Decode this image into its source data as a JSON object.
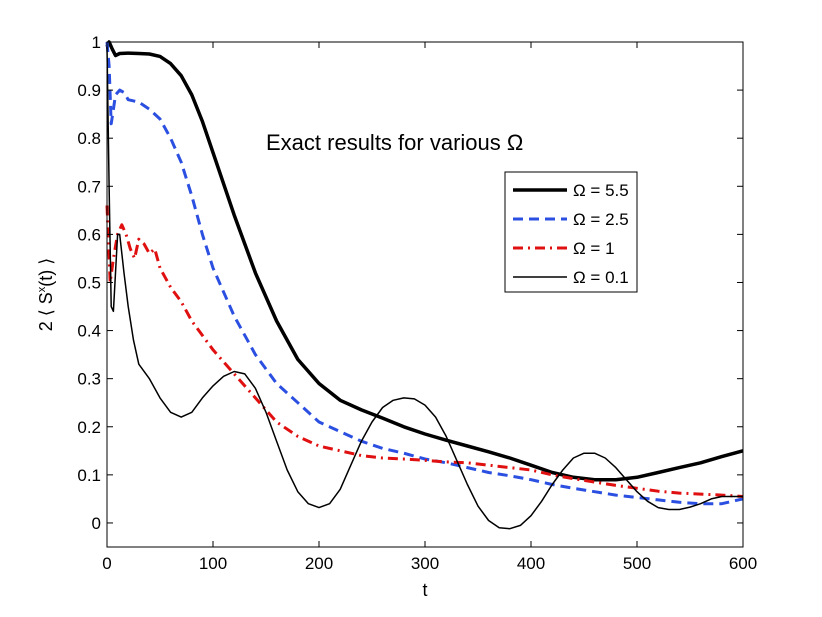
{
  "chart_data": {
    "type": "line",
    "title": "",
    "annotation": "Exact results for various Ω",
    "xlabel": "t",
    "ylabel": "2 ⟨ Sx(t) ⟩",
    "ylabel_parts": {
      "prefix": "2 ⟨ S",
      "sup": "x",
      "suffix": "(t) ⟩"
    },
    "xlim": [
      0,
      600
    ],
    "ylim": [
      -0.05,
      1.0
    ],
    "xticks": [
      0,
      100,
      200,
      300,
      400,
      500,
      600
    ],
    "yticks": [
      0,
      0.1,
      0.2,
      0.3,
      0.4,
      0.5,
      0.6,
      0.7,
      0.8,
      0.9,
      1
    ],
    "xtick_labels": [
      "0",
      "100",
      "200",
      "300",
      "400",
      "500",
      "600"
    ],
    "ytick_labels": [
      "0",
      "0.1",
      "0.2",
      "0.3",
      "0.4",
      "0.5",
      "0.6",
      "0.7",
      "0.8",
      "0.9",
      "1"
    ],
    "grid": false,
    "legend_position": "upper-right",
    "series": [
      {
        "name": "Ω = 5.5",
        "color": "#000000",
        "style": "solid-thick",
        "x": [
          0,
          2,
          5,
          8,
          12,
          20,
          30,
          40,
          50,
          60,
          70,
          80,
          90,
          100,
          120,
          140,
          160,
          180,
          200,
          220,
          240,
          260,
          280,
          300,
          320,
          340,
          360,
          380,
          400,
          420,
          440,
          460,
          480,
          500,
          520,
          540,
          560,
          580,
          600
        ],
        "y": [
          0.99,
          1.0,
          0.985,
          0.972,
          0.976,
          0.977,
          0.976,
          0.975,
          0.97,
          0.955,
          0.93,
          0.89,
          0.835,
          0.77,
          0.64,
          0.52,
          0.42,
          0.34,
          0.29,
          0.255,
          0.235,
          0.218,
          0.2,
          0.185,
          0.172,
          0.16,
          0.148,
          0.135,
          0.12,
          0.105,
          0.095,
          0.09,
          0.09,
          0.095,
          0.105,
          0.115,
          0.125,
          0.138,
          0.15
        ]
      },
      {
        "name": "Ω = 2.5",
        "color": "#2b4fe0",
        "style": "dashed",
        "x": [
          0,
          2,
          4,
          6,
          8,
          12,
          16,
          20,
          30,
          40,
          50,
          60,
          70,
          80,
          90,
          100,
          120,
          140,
          160,
          180,
          200,
          220,
          240,
          260,
          280,
          300,
          320,
          340,
          360,
          380,
          400,
          420,
          440,
          460,
          480,
          500,
          520,
          540,
          560,
          580,
          600
        ],
        "y": [
          1.0,
          0.95,
          0.83,
          0.86,
          0.89,
          0.9,
          0.895,
          0.88,
          0.875,
          0.86,
          0.84,
          0.8,
          0.75,
          0.68,
          0.6,
          0.53,
          0.43,
          0.35,
          0.29,
          0.25,
          0.21,
          0.19,
          0.17,
          0.155,
          0.145,
          0.133,
          0.125,
          0.115,
          0.105,
          0.098,
          0.09,
          0.08,
          0.072,
          0.065,
          0.058,
          0.053,
          0.048,
          0.043,
          0.04,
          0.04,
          0.05
        ]
      },
      {
        "name": "Ω = 1",
        "color": "#e01010",
        "style": "dashdot",
        "x": [
          0,
          3,
          6,
          10,
          14,
          18,
          22,
          26,
          30,
          35,
          40,
          45,
          50,
          60,
          70,
          80,
          90,
          100,
          120,
          140,
          160,
          180,
          200,
          220,
          240,
          260,
          280,
          300,
          320,
          340,
          360,
          380,
          400,
          420,
          440,
          460,
          480,
          500,
          520,
          540,
          560,
          580,
          600
        ],
        "y": [
          0.66,
          0.5,
          0.55,
          0.6,
          0.62,
          0.6,
          0.57,
          0.55,
          0.59,
          0.58,
          0.56,
          0.57,
          0.53,
          0.49,
          0.46,
          0.42,
          0.39,
          0.36,
          0.31,
          0.26,
          0.21,
          0.18,
          0.16,
          0.15,
          0.14,
          0.135,
          0.133,
          0.13,
          0.127,
          0.125,
          0.12,
          0.115,
          0.11,
          0.1,
          0.092,
          0.085,
          0.078,
          0.072,
          0.066,
          0.062,
          0.06,
          0.058,
          0.055
        ]
      },
      {
        "name": "Ω = 0.1",
        "color": "#000000",
        "style": "solid-thin",
        "x": [
          0,
          2,
          4,
          6,
          8,
          10,
          12,
          16,
          20,
          25,
          30,
          40,
          50,
          60,
          70,
          80,
          90,
          100,
          110,
          120,
          130,
          140,
          150,
          160,
          170,
          180,
          190,
          200,
          210,
          220,
          230,
          240,
          250,
          260,
          270,
          280,
          290,
          300,
          310,
          320,
          330,
          340,
          350,
          360,
          370,
          380,
          390,
          400,
          410,
          420,
          430,
          440,
          450,
          460,
          470,
          480,
          490,
          500,
          510,
          520,
          530,
          540,
          550,
          560,
          570,
          580,
          590,
          600
        ],
        "y": [
          0.99,
          0.7,
          0.45,
          0.44,
          0.52,
          0.6,
          0.6,
          0.52,
          0.45,
          0.38,
          0.33,
          0.3,
          0.26,
          0.23,
          0.22,
          0.23,
          0.26,
          0.285,
          0.305,
          0.315,
          0.31,
          0.28,
          0.23,
          0.17,
          0.11,
          0.065,
          0.04,
          0.032,
          0.04,
          0.07,
          0.12,
          0.17,
          0.21,
          0.24,
          0.255,
          0.26,
          0.258,
          0.245,
          0.22,
          0.18,
          0.13,
          0.08,
          0.035,
          0.005,
          -0.01,
          -0.012,
          -0.005,
          0.015,
          0.045,
          0.08,
          0.11,
          0.135,
          0.145,
          0.145,
          0.135,
          0.115,
          0.09,
          0.065,
          0.045,
          0.032,
          0.028,
          0.028,
          0.033,
          0.04,
          0.05,
          0.055,
          0.055,
          0.055
        ]
      }
    ]
  }
}
